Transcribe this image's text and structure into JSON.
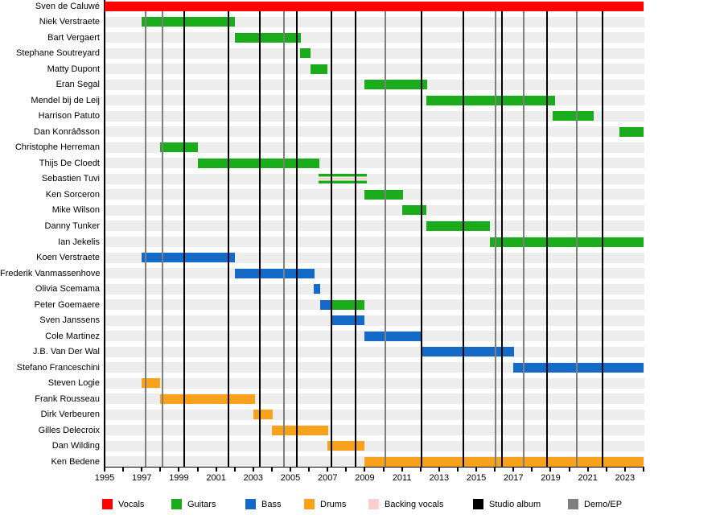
{
  "chart_data": {
    "type": "timeline",
    "description": "Band members timeline (gantt-style), roles shown as colored bars, releases as vertical lines",
    "axis": {
      "min_year": 1995,
      "max_year": 2024,
      "tick_interval_years": 1,
      "tick_labels": [
        "1995",
        "1997",
        "1999",
        "2001",
        "2003",
        "2005",
        "2007",
        "2009",
        "2011",
        "2013",
        "2015",
        "2017",
        "2019",
        "2021",
        "2023"
      ],
      "grid": "off",
      "orientation": "horizontal"
    },
    "members": [
      {
        "name": "Sven de Caluwé",
        "bars": [
          {
            "role": "vocals",
            "from": 1995,
            "till": 2024
          }
        ]
      },
      {
        "name": "Niek Verstraete",
        "bars": [
          {
            "role": "guitars",
            "from": 1997,
            "till": 2002
          }
        ]
      },
      {
        "name": "Bart Vergaert",
        "bars": [
          {
            "role": "guitars",
            "from": 2002,
            "till": 2005.55
          }
        ]
      },
      {
        "name": "Stephane Soutreyard",
        "bars": [
          {
            "role": "guitars",
            "from": 2005.5,
            "till": 2006.1
          }
        ]
      },
      {
        "name": "Matty Dupont",
        "bars": [
          {
            "role": "guitars",
            "from": 2006.1,
            "till": 2007
          }
        ]
      },
      {
        "name": "Eran Segal",
        "bars": [
          {
            "role": "guitars",
            "from": 2009,
            "till": 2012.35
          }
        ]
      },
      {
        "name": "Mendel bij de Leij",
        "bars": [
          {
            "role": "guitars",
            "from": 2012.3,
            "till": 2019.25
          }
        ]
      },
      {
        "name": "Harrison Patuto",
        "bars": [
          {
            "role": "guitars",
            "from": 2019.1,
            "till": 2021.3
          }
        ]
      },
      {
        "name": "Dan Konráðsson",
        "bars": [
          {
            "role": "guitars",
            "from": 2022.7,
            "till": 2024
          }
        ]
      },
      {
        "name": "Christophe Herreman",
        "bars": [
          {
            "role": "guitars",
            "from": 1998,
            "till": 2000
          }
        ]
      },
      {
        "name": "Thijs De Cloedt",
        "bars": [
          {
            "role": "guitars",
            "from": 2000,
            "till": 2006.55
          }
        ]
      },
      {
        "name": "Sebastien Tuvi",
        "bars": [
          {
            "role": "guitars+backing_vocals",
            "from": 2006.5,
            "till": 2009.1
          }
        ]
      },
      {
        "name": "Ken Sorceron",
        "bars": [
          {
            "role": "guitars",
            "from": 2009,
            "till": 2011.05
          }
        ]
      },
      {
        "name": "Mike Wilson",
        "bars": [
          {
            "role": "guitars",
            "from": 2011,
            "till": 2012.3
          }
        ]
      },
      {
        "name": "Danny Tunker",
        "bars": [
          {
            "role": "guitars",
            "from": 2012.3,
            "till": 2015.75
          }
        ]
      },
      {
        "name": "Ian Jekelis",
        "bars": [
          {
            "role": "guitars",
            "from": 2015.75,
            "till": 2024
          }
        ]
      },
      {
        "name": "Koen Verstraete",
        "bars": [
          {
            "role": "bass",
            "from": 1997,
            "till": 2002
          }
        ]
      },
      {
        "name": "Frederik Vanmassenhove",
        "bars": [
          {
            "role": "bass",
            "from": 2002,
            "till": 2006.3
          }
        ]
      },
      {
        "name": "Olivia Scemama",
        "bars": [
          {
            "role": "bass",
            "from": 2006.25,
            "till": 2006.6
          }
        ]
      },
      {
        "name": "Peter Goemaere",
        "bars": [
          {
            "role": "bass",
            "from": 2006.6,
            "till": 2007.2
          },
          {
            "role": "guitars",
            "from": 2007.2,
            "till": 2009
          }
        ]
      },
      {
        "name": "Sven Janssens",
        "bars": [
          {
            "role": "bass",
            "from": 2007.25,
            "till": 2009
          }
        ]
      },
      {
        "name": "Cole Martinez",
        "bars": [
          {
            "role": "bass",
            "from": 2009,
            "till": 2012
          }
        ]
      },
      {
        "name": "J.B. Van Der Wal",
        "bars": [
          {
            "role": "bass",
            "from": 2012,
            "till": 2017.05
          }
        ]
      },
      {
        "name": "Stefano Franceschini",
        "bars": [
          {
            "role": "bass",
            "from": 2017,
            "till": 2024
          }
        ]
      },
      {
        "name": "Steven Logie",
        "bars": [
          {
            "role": "drums",
            "from": 1997,
            "till": 1998
          }
        ]
      },
      {
        "name": "Frank Rousseau",
        "bars": [
          {
            "role": "drums",
            "from": 1998,
            "till": 2003.1
          }
        ]
      },
      {
        "name": "Dirk Verbeuren",
        "bars": [
          {
            "role": "drums",
            "from": 2003,
            "till": 2004.05
          }
        ]
      },
      {
        "name": "Gilles Delecroix",
        "bars": [
          {
            "role": "drums",
            "from": 2004,
            "till": 2007.05
          }
        ]
      },
      {
        "name": "Dan Wilding",
        "bars": [
          {
            "role": "drums",
            "from": 2007,
            "till": 2009
          }
        ]
      },
      {
        "name": "Ken Bedene",
        "bars": [
          {
            "role": "drums",
            "from": 2009,
            "till": 2024
          }
        ]
      }
    ],
    "releases": {
      "studio_albums": [
        1999.3,
        2001.65,
        2003.35,
        2005.35,
        2007.2,
        2008.5,
        2012.05,
        2014.3,
        2016.4,
        2018.8,
        2021.8
      ],
      "demos_eps": [
        1997.2,
        1998.1,
        2004.65,
        2010.1,
        2016.05,
        2017.55,
        2020.4
      ]
    },
    "legend": [
      {
        "label": "Vocals",
        "color_key": "vocals"
      },
      {
        "label": "Guitars",
        "color_key": "guitars"
      },
      {
        "label": "Bass",
        "color_key": "bass"
      },
      {
        "label": "Drums",
        "color_key": "drums"
      },
      {
        "label": "Backing vocals",
        "color_key": "backing_vocals"
      },
      {
        "label": "Studio album",
        "color_key": "studio_album"
      },
      {
        "label": "Demo/EP",
        "color_key": "demo_ep"
      }
    ],
    "colors": {
      "vocals": "#FE0000",
      "guitars": "#1BAC1B",
      "bass": "#1569C7",
      "drums": "#F8A21B",
      "backing_vocals": "#F8D0D0",
      "studio_album": "#000000",
      "demo_ep": "#7F7F7F",
      "row_band": "#EDEDED"
    }
  }
}
